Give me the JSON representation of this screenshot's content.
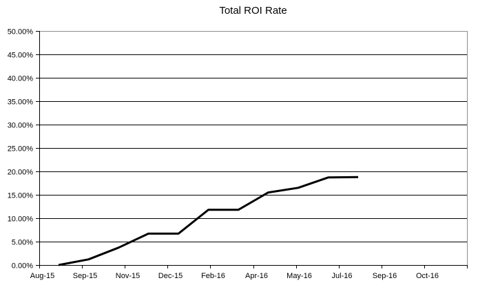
{
  "title": "Total ROI Rate",
  "colors": {
    "background": "#ffffff",
    "text": "#000000",
    "gridline": "#000000",
    "plot_frame": "#8c8c8c",
    "axis": "#000000",
    "series_line": "#000000"
  },
  "chart_data": {
    "type": "line",
    "title": "Total ROI Rate",
    "xlabel": "",
    "ylabel": "",
    "ylim": [
      0,
      50
    ],
    "y_step": 5,
    "grid": true,
    "legend": "none",
    "y_tick_labels": [
      "50.00%",
      "45.00%",
      "40.00%",
      "35.00%",
      "30.00%",
      "25.00%",
      "20.00%",
      "15.00%",
      "10.00%",
      "5.00%",
      "0.00%"
    ],
    "x_tick_labels": [
      "Aug-15",
      "Sep-15",
      "Nov-15",
      "Dec-15",
      "Feb-16",
      "Apr-16",
      "May-16",
      "Jul-16",
      "Sep-16",
      "Oct-16"
    ],
    "series": [
      {
        "name": "Total ROI Rate",
        "points": [
          {
            "x": "Aug-15",
            "y": 0.0
          },
          {
            "x": "Sep-15",
            "y": 1.2
          },
          {
            "x": "Oct-15",
            "y": 3.7
          },
          {
            "x": "Nov-15",
            "y": 6.7
          },
          {
            "x": "Dec-15",
            "y": 6.7
          },
          {
            "x": "Jan-16",
            "y": 11.8
          },
          {
            "x": "Feb-16",
            "y": 11.8
          },
          {
            "x": "Mar-16",
            "y": 15.5
          },
          {
            "x": "Apr-16",
            "y": 16.5
          },
          {
            "x": "May-16",
            "y": 18.7
          },
          {
            "x": "Jun-16",
            "y": 18.8
          }
        ]
      }
    ]
  }
}
